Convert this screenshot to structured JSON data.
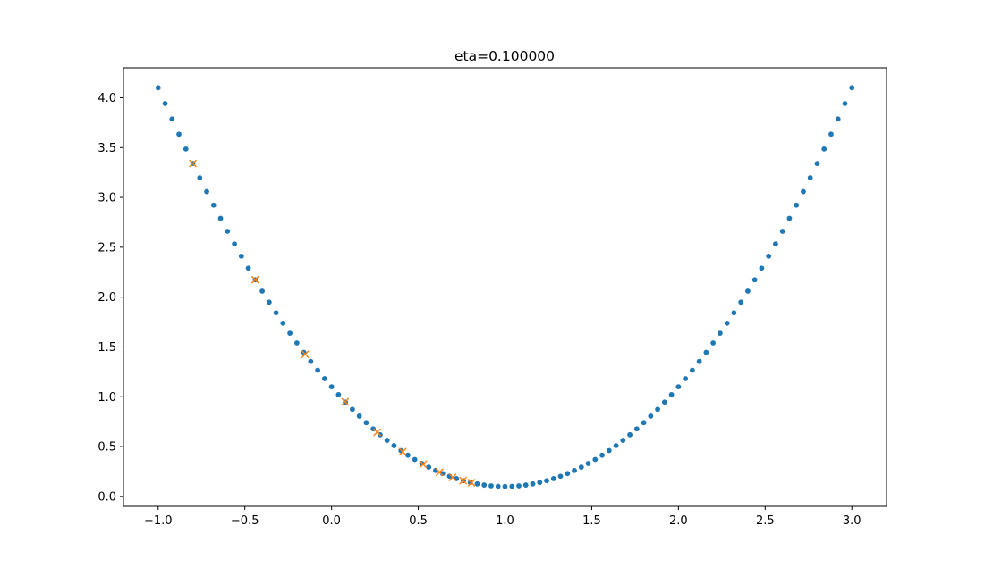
{
  "chart_data": {
    "type": "scatter",
    "title": "eta=0.100000",
    "xlabel": "",
    "ylabel": "",
    "xlim": [
      -1.2,
      3.2
    ],
    "ylim": [
      -0.1,
      4.3
    ],
    "xticks": [
      -1.0,
      -0.5,
      0.0,
      0.5,
      1.0,
      1.5,
      2.0,
      2.5,
      3.0
    ],
    "xtick_labels": [
      "−1.0",
      "−0.5",
      "0.0",
      "0.5",
      "1.0",
      "1.5",
      "2.0",
      "2.5",
      "3.0"
    ],
    "yticks": [
      0.0,
      0.5,
      1.0,
      1.5,
      2.0,
      2.5,
      3.0,
      3.5,
      4.0
    ],
    "ytick_labels": [
      "0.0",
      "0.5",
      "1.0",
      "1.5",
      "2.0",
      "2.5",
      "3.0",
      "3.5",
      "4.0"
    ],
    "grid": false,
    "legend": "none",
    "series": [
      {
        "marker": "dot",
        "color": "#1f77b4",
        "x": [
          -1.0,
          -0.96,
          -0.92,
          -0.88,
          -0.84,
          -0.8,
          -0.76,
          -0.72,
          -0.68,
          -0.64,
          -0.6,
          -0.56,
          -0.52,
          -0.48,
          -0.44,
          -0.4,
          -0.36,
          -0.32,
          -0.28,
          -0.24,
          -0.2,
          -0.16,
          -0.12,
          -0.08,
          -0.04,
          0.0,
          0.04,
          0.08,
          0.12,
          0.16,
          0.2,
          0.24,
          0.28,
          0.32,
          0.36,
          0.4,
          0.44,
          0.48,
          0.52,
          0.56,
          0.6,
          0.64,
          0.68,
          0.72,
          0.76,
          0.8,
          0.84,
          0.88,
          0.92,
          0.96,
          1.0,
          1.04,
          1.08,
          1.12,
          1.16,
          1.2,
          1.24,
          1.28,
          1.32,
          1.36,
          1.4,
          1.44,
          1.48,
          1.52,
          1.56,
          1.6,
          1.64,
          1.68,
          1.72,
          1.76,
          1.8,
          1.84,
          1.88,
          1.92,
          1.96,
          2.0,
          2.04,
          2.08,
          2.12,
          2.16,
          2.2,
          2.24,
          2.28,
          2.32,
          2.36,
          2.4,
          2.44,
          2.48,
          2.52,
          2.56,
          2.6,
          2.64,
          2.68,
          2.72,
          2.76,
          2.8,
          2.84,
          2.88,
          2.92,
          2.96,
          3.0
        ],
        "y": [
          4.1,
          3.9416,
          3.7864,
          3.6344,
          3.4856,
          3.34,
          3.1976,
          3.0584,
          2.9224,
          2.7896,
          2.66,
          2.5336,
          2.4104,
          2.2904,
          2.1736,
          2.06,
          1.9496,
          1.8424,
          1.7384,
          1.6376,
          1.54,
          1.4456,
          1.3544,
          1.2664,
          1.1816,
          1.1,
          1.0216,
          0.9464,
          0.8744,
          0.8056,
          0.74,
          0.6776,
          0.6184,
          0.5624,
          0.5096,
          0.46,
          0.4136,
          0.3704,
          0.3304,
          0.2936,
          0.26,
          0.2296,
          0.2024,
          0.1784,
          0.1576,
          0.14,
          0.1256,
          0.1144,
          0.1064,
          0.1016,
          0.1,
          0.1016,
          0.1064,
          0.1144,
          0.1256,
          0.14,
          0.1576,
          0.1784,
          0.2024,
          0.2296,
          0.26,
          0.2936,
          0.3304,
          0.3704,
          0.4136,
          0.46,
          0.5096,
          0.5624,
          0.6184,
          0.6776,
          0.74,
          0.8056,
          0.8744,
          0.9464,
          1.0216,
          1.1,
          1.1816,
          1.2664,
          1.3544,
          1.4456,
          1.54,
          1.6376,
          1.7384,
          1.8424,
          1.9496,
          2.06,
          2.1736,
          2.2904,
          2.4104,
          2.5336,
          2.66,
          2.7896,
          2.9224,
          3.0584,
          3.1976,
          3.34,
          3.4856,
          3.6344,
          3.7864,
          3.9416,
          4.1
        ]
      },
      {
        "marker": "x",
        "color": "#ff7f0e",
        "x": [
          -0.8,
          -0.44,
          -0.152,
          0.0784,
          0.2627,
          0.4102,
          0.5281,
          0.6225,
          0.698,
          0.7584,
          0.8067
        ],
        "y": [
          3.34,
          2.1736,
          1.4271,
          0.9494,
          0.6436,
          0.4479,
          0.3227,
          0.2425,
          0.1912,
          0.1584,
          0.1374
        ]
      }
    ]
  }
}
